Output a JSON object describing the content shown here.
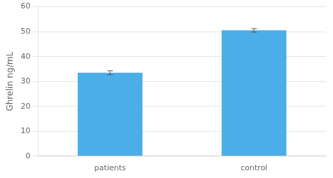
{
  "chart_data": {
    "type": "bar",
    "categories": [
      "patients",
      "control"
    ],
    "values": [
      33.5,
      50.5
    ],
    "errors": [
      0.8,
      0.7
    ],
    "color": "#4BAEE8",
    "ylabel": "Ghrelin ng/mL",
    "ylim": [
      0,
      60
    ],
    "yticks": [
      0,
      10,
      20,
      30,
      40,
      50,
      60
    ],
    "grid": true
  }
}
